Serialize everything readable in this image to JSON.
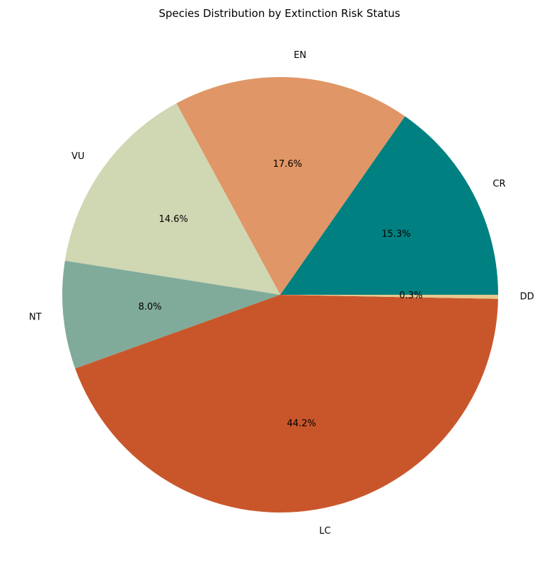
{
  "chart_data": {
    "type": "pie",
    "title": "Species Distribution by Extinction Risk Status",
    "start_angle_deg": 0,
    "direction": "counterclockwise",
    "slices": [
      {
        "label": "CR",
        "value": 15.3,
        "pct_label": "15.3%",
        "color": "#008080"
      },
      {
        "label": "EN",
        "value": 17.6,
        "pct_label": "17.6%",
        "color": "#E09666"
      },
      {
        "label": "VU",
        "value": 14.6,
        "pct_label": "14.6%",
        "color": "#D0D7B3"
      },
      {
        "label": "NT",
        "value": 8.0,
        "pct_label": "8.0%",
        "color": "#80AB9A"
      },
      {
        "label": "LC",
        "value": 44.2,
        "pct_label": "44.2%",
        "color": "#C9562B"
      },
      {
        "label": "DD",
        "value": 0.3,
        "pct_label": "0.3%",
        "color": "#E6C98F"
      }
    ]
  }
}
